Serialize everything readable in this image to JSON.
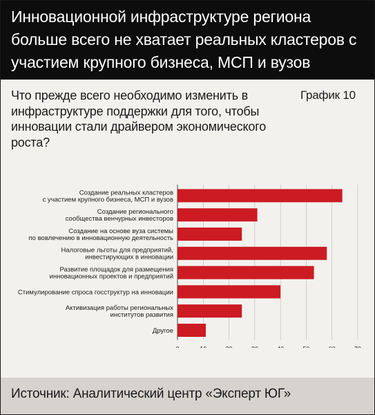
{
  "header": {
    "title": "Инновационной инфраструктуре региона больше всего не хватает реальных кластеров с участием крупного бизнеса, МСП и вузов"
  },
  "question": "Что прежде всего необходимо изменить в инфраструктуре поддержки для того, чтобы инновации стали драйвером экономического роста?",
  "chart_number": "График 10",
  "source": "Источник: Аналитический центр «Эксперт ЮГ»",
  "colors": {
    "bar": "#cc1b23",
    "header_bg": "#0d0d0d",
    "page_bg": "#f2f1ee",
    "source_bg": "#d6d3cf"
  },
  "chart_data": {
    "type": "bar",
    "orientation": "horizontal",
    "categories": [
      [
        "Создание реальных кластеров",
        "с участием крупного бизнеса, МСП и вузов"
      ],
      [
        "Создание регионального",
        "сообщества венчурных инвесторов"
      ],
      [
        "Создание на основе вуза системы",
        "по вовлечению в инновационную деятельность"
      ],
      [
        "Налоговые льготы для предприятий,",
        "инвестирующих в инновации"
      ],
      [
        "Развитие площадок для размещения",
        "инновационных проектов и предприятий"
      ],
      [
        "Стимулирование спроса госструктур на инновации"
      ],
      [
        "Активизация работы региональных",
        "институтов развития"
      ],
      [
        "Другое"
      ]
    ],
    "values": [
      64,
      31,
      25,
      58,
      53,
      40,
      25,
      11
    ],
    "xlim": [
      0,
      70
    ],
    "ticks": [
      "0",
      "10",
      "20",
      "30",
      "40",
      "50",
      "60",
      "70"
    ],
    "grid": true,
    "legend": "none"
  }
}
